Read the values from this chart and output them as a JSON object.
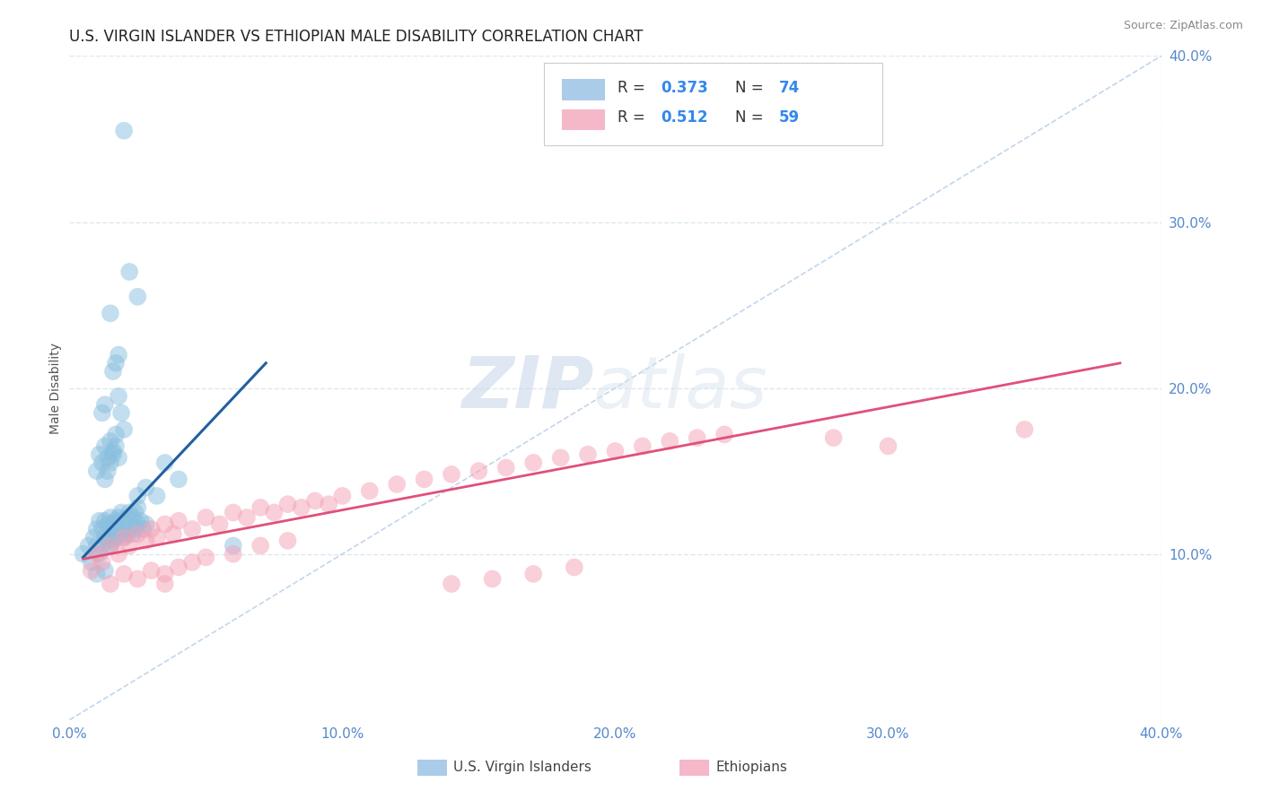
{
  "title": "U.S. VIRGIN ISLANDER VS ETHIOPIAN MALE DISABILITY CORRELATION CHART",
  "source": "Source: ZipAtlas.com",
  "ylabel": "Male Disability",
  "xlim": [
    0.0,
    0.4
  ],
  "ylim": [
    0.0,
    0.4
  ],
  "xticks": [
    0.0,
    0.1,
    0.2,
    0.3,
    0.4
  ],
  "yticks": [
    0.1,
    0.2,
    0.3,
    0.4
  ],
  "xticklabels": [
    "0.0%",
    "10.0%",
    "20.0%",
    "30.0%",
    "40.0%"
  ],
  "yticklabels": [
    "10.0%",
    "20.0%",
    "30.0%",
    "40.0%"
  ],
  "blue_color": "#89bfdf",
  "pink_color": "#f4a0b5",
  "blue_line_color": "#2060a0",
  "pink_line_color": "#e0507a",
  "ref_line_color": "#b8cfe8",
  "watermark_zip": "ZIP",
  "watermark_atlas": "atlas",
  "legend_label_blue": "U.S. Virgin Islanders",
  "legend_label_pink": "Ethiopians",
  "blue_scatter_x": [
    0.005,
    0.007,
    0.008,
    0.009,
    0.01,
    0.01,
    0.011,
    0.011,
    0.012,
    0.012,
    0.013,
    0.013,
    0.014,
    0.014,
    0.015,
    0.015,
    0.015,
    0.016,
    0.016,
    0.017,
    0.017,
    0.018,
    0.018,
    0.019,
    0.019,
    0.02,
    0.02,
    0.021,
    0.021,
    0.022,
    0.022,
    0.023,
    0.023,
    0.024,
    0.024,
    0.025,
    0.025,
    0.026,
    0.027,
    0.028,
    0.01,
    0.011,
    0.012,
    0.013,
    0.014,
    0.015,
    0.016,
    0.017,
    0.018,
    0.013,
    0.014,
    0.015,
    0.016,
    0.017,
    0.012,
    0.013,
    0.018,
    0.019,
    0.02,
    0.016,
    0.017,
    0.018,
    0.035,
    0.04,
    0.025,
    0.028,
    0.032,
    0.06,
    0.02,
    0.022,
    0.025,
    0.015,
    0.013,
    0.01
  ],
  "blue_scatter_y": [
    0.1,
    0.105,
    0.095,
    0.11,
    0.105,
    0.115,
    0.1,
    0.12,
    0.105,
    0.115,
    0.11,
    0.12,
    0.108,
    0.118,
    0.105,
    0.112,
    0.122,
    0.108,
    0.118,
    0.11,
    0.12,
    0.112,
    0.122,
    0.115,
    0.125,
    0.11,
    0.12,
    0.112,
    0.122,
    0.115,
    0.125,
    0.112,
    0.122,
    0.115,
    0.125,
    0.118,
    0.128,
    0.12,
    0.115,
    0.118,
    0.15,
    0.16,
    0.155,
    0.165,
    0.158,
    0.168,
    0.162,
    0.172,
    0.158,
    0.145,
    0.15,
    0.155,
    0.16,
    0.165,
    0.185,
    0.19,
    0.195,
    0.185,
    0.175,
    0.21,
    0.215,
    0.22,
    0.155,
    0.145,
    0.135,
    0.14,
    0.135,
    0.105,
    0.355,
    0.27,
    0.255,
    0.245,
    0.09,
    0.088
  ],
  "pink_scatter_x": [
    0.008,
    0.01,
    0.012,
    0.015,
    0.018,
    0.02,
    0.022,
    0.025,
    0.028,
    0.03,
    0.032,
    0.035,
    0.038,
    0.04,
    0.045,
    0.05,
    0.055,
    0.06,
    0.065,
    0.07,
    0.075,
    0.08,
    0.085,
    0.09,
    0.095,
    0.1,
    0.11,
    0.12,
    0.13,
    0.14,
    0.15,
    0.16,
    0.17,
    0.18,
    0.19,
    0.2,
    0.21,
    0.22,
    0.23,
    0.24,
    0.015,
    0.02,
    0.025,
    0.03,
    0.035,
    0.04,
    0.045,
    0.05,
    0.06,
    0.07,
    0.08,
    0.35,
    0.3,
    0.28,
    0.14,
    0.155,
    0.17,
    0.185,
    0.035
  ],
  "pink_scatter_y": [
    0.09,
    0.1,
    0.095,
    0.105,
    0.1,
    0.11,
    0.105,
    0.112,
    0.108,
    0.115,
    0.11,
    0.118,
    0.112,
    0.12,
    0.115,
    0.122,
    0.118,
    0.125,
    0.122,
    0.128,
    0.125,
    0.13,
    0.128,
    0.132,
    0.13,
    0.135,
    0.138,
    0.142,
    0.145,
    0.148,
    0.15,
    0.152,
    0.155,
    0.158,
    0.16,
    0.162,
    0.165,
    0.168,
    0.17,
    0.172,
    0.082,
    0.088,
    0.085,
    0.09,
    0.088,
    0.092,
    0.095,
    0.098,
    0.1,
    0.105,
    0.108,
    0.175,
    0.165,
    0.17,
    0.082,
    0.085,
    0.088,
    0.092,
    0.082
  ],
  "blue_line_x": [
    0.005,
    0.072
  ],
  "blue_line_y": [
    0.098,
    0.215
  ],
  "pink_line_x": [
    0.005,
    0.385
  ],
  "pink_line_y": [
    0.097,
    0.215
  ],
  "background_color": "#ffffff",
  "grid_color": "#dde8f0",
  "title_fontsize": 12,
  "axis_label_fontsize": 10,
  "tick_fontsize": 11,
  "tick_color": "#5588cc"
}
